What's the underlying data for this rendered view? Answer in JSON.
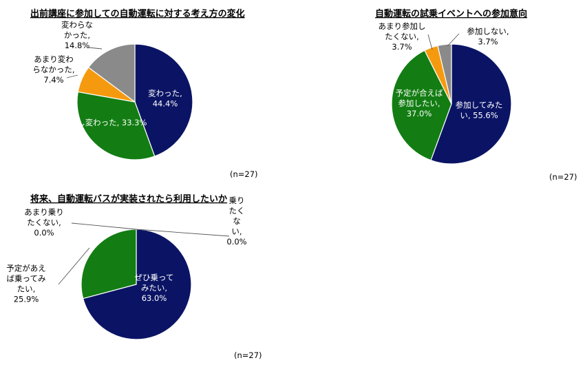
{
  "colors": {
    "navy": "#0b1464",
    "green": "#137d13",
    "orange": "#f59a0f",
    "gray": "#8a8a8a"
  },
  "chart_data": [
    {
      "type": "pie",
      "title": "出前講座に参加しての自動運転に対する考え方の変化",
      "note": "(n=27)",
      "slices": [
        {
          "label": [
            "変わった,",
            "44.4%"
          ],
          "value": 44.4,
          "color": "navy",
          "label_color": "#ffffff"
        },
        {
          "label": [
            "少し変わった, 33.3%"
          ],
          "value": 33.3,
          "color": "green",
          "label_color": "#ffffff"
        },
        {
          "label": [
            "あまり変わ",
            "らなかった,",
            "7.4%"
          ],
          "value": 7.4,
          "color": "orange",
          "label_color": "#000000"
        },
        {
          "label": [
            "変わらな",
            "かった,",
            "14.8%"
          ],
          "value": 14.8,
          "color": "gray",
          "label_color": "#000000"
        }
      ]
    },
    {
      "type": "pie",
      "title": "自動運転の試乗イベントへの参加意向",
      "note": "(n=27)",
      "slices": [
        {
          "label": [
            "参加してみた",
            "い, 55.6%"
          ],
          "value": 55.6,
          "color": "navy",
          "label_color": "#ffffff"
        },
        {
          "label": [
            "予定が合えば",
            "参加したい,",
            "37.0%"
          ],
          "value": 37.0,
          "color": "green",
          "label_color": "#ffffff"
        },
        {
          "label": [
            "あまり参加し",
            "たくない,",
            "3.7%"
          ],
          "value": 3.7,
          "color": "orange",
          "label_color": "#000000"
        },
        {
          "label": [
            "参加しない,",
            "3.7%"
          ],
          "value": 3.7,
          "color": "gray",
          "label_color": "#000000"
        }
      ]
    },
    {
      "type": "pie",
      "title": "将来、自動運転バスが実装されたら利用したいか",
      "note": "(n=27)",
      "slices": [
        {
          "label": [
            "ぜひ乗って",
            "みたい,",
            "63.0%"
          ],
          "value": 63.0,
          "color": "navy",
          "label_color": "#ffffff"
        },
        {
          "label": [
            "予定があえ",
            "ば乗ってみ",
            "たい,",
            "25.9%"
          ],
          "value": 25.9,
          "color": "green",
          "label_color": "#000000"
        },
        {
          "label": [
            "あまり乗り",
            "たくない,",
            "0.0%"
          ],
          "value": 0.0,
          "color": "orange",
          "label_color": "#000000"
        },
        {
          "label": [
            "乗り",
            "たく",
            "な",
            "い,",
            "0.0%"
          ],
          "value": 0.0,
          "color": "gray",
          "label_color": "#000000"
        }
      ]
    }
  ]
}
